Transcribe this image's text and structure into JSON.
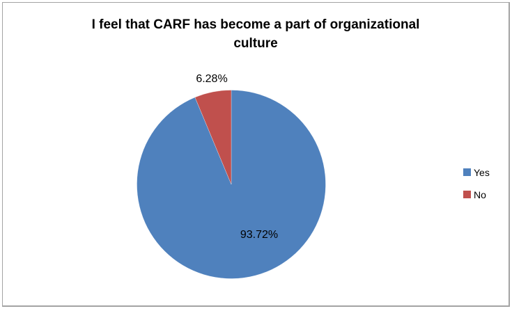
{
  "frame": {
    "background": "#FFFFFF",
    "border_color": "#A3A3A3"
  },
  "chart_data": {
    "type": "pie",
    "title": "I feel that CARF has become a part of organizational culture",
    "categories": [
      "Yes",
      "No"
    ],
    "values": [
      93.72,
      6.28
    ],
    "colors": [
      "#4F81BD",
      "#C0504D"
    ],
    "data_labels": {
      "yes": "93.72%",
      "no": "6.28%"
    },
    "start_angle_deg": 0,
    "direction": "clockwise",
    "legend_position": "right",
    "grid": "off"
  },
  "legend": {
    "items": [
      {
        "label": "Yes",
        "color": "#4F81BD"
      },
      {
        "label": "No",
        "color": "#C0504D"
      }
    ]
  }
}
